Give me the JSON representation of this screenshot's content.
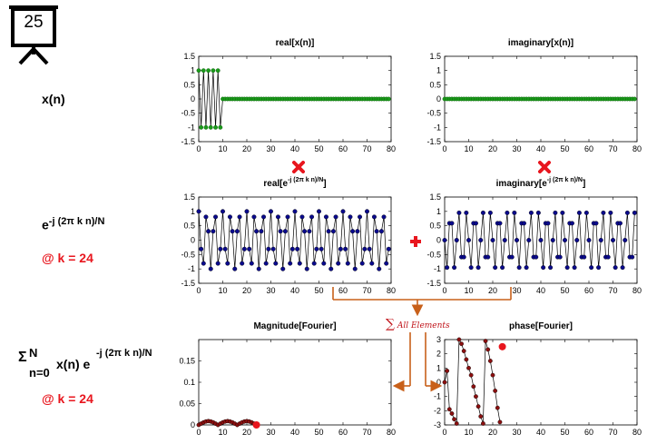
{
  "slide_number": "25",
  "left_labels": {
    "xn": "x(n)",
    "kernel_base": "e",
    "kernel_exp": "-j (2π k n)/N",
    "k_note_1": "@ k = 24",
    "sum_sigma": "Σ",
    "sum_upper": "N",
    "sum_lower": "n=0",
    "sum_term": "x(n) e",
    "sum_exp": "-j (2π k n)/N",
    "k_note_2": "@ k = 24"
  },
  "operators": {
    "sum_label": "All Elements",
    "sum_symbol": "∑"
  },
  "colors": {
    "green": "#1a9a1a",
    "blue": "#0a0a8c",
    "darkred": "#8b0f0f",
    "red": "#e8161e",
    "orange": "#c8601a",
    "grid": "#dddddd"
  },
  "chart_data": [
    {
      "id": "real-x",
      "type": "scatter",
      "title": "real[x(n)]",
      "xlim": [
        0,
        80
      ],
      "ylim": [
        -1.5,
        1.5
      ],
      "xticks": [
        "0",
        "10",
        "20",
        "30",
        "40",
        "50",
        "60",
        "70",
        "80"
      ],
      "yticks": [
        "1.5",
        "1",
        "0.5",
        "0",
        "-0.5",
        "-1",
        "-1.5"
      ],
      "series": [
        {
          "color": "green",
          "x": "0..79",
          "y_rule": "pulse: 1 for n=0..9 (step style ±1), 0 elsewhere",
          "values_n0_9": [
            1,
            -1,
            1,
            -1,
            1,
            -1,
            1,
            -1,
            1,
            -1
          ],
          "values_n10_79": 0
        }
      ]
    },
    {
      "id": "imag-x",
      "type": "scatter",
      "title": "imaginary[x(n)]",
      "xlim": [
        0,
        80
      ],
      "ylim": [
        -1.5,
        1.5
      ],
      "xticks": [
        "0",
        "10",
        "20",
        "30",
        "40",
        "50",
        "60",
        "70",
        "80"
      ],
      "yticks": [
        "1.5",
        "1",
        "0.5",
        "0",
        "-0.5",
        "-1",
        "-1.5"
      ],
      "series": [
        {
          "color": "green",
          "values_all": 0
        }
      ]
    },
    {
      "id": "real-kernel",
      "type": "line",
      "title_base": "real[e",
      "title_exp": "-j (2π k n)/N",
      "title_end": "]",
      "xlim": [
        0,
        80
      ],
      "ylim": [
        -1.5,
        1.5
      ],
      "xticks": [
        "0",
        "10",
        "20",
        "30",
        "40",
        "50",
        "60",
        "70",
        "80"
      ],
      "yticks": [
        "1.5",
        "1",
        "0.5",
        "0",
        "-0.5",
        "-1",
        "-1.5"
      ],
      "k": 24,
      "N": 80,
      "series": [
        {
          "color": "blue",
          "function": "cos(2π·24·n/80)",
          "n": "0..79"
        }
      ]
    },
    {
      "id": "imag-kernel",
      "type": "line",
      "title_base": "imaginary[e",
      "title_exp": "-j (2π k n)/N",
      "title_end": "]",
      "xlim": [
        0,
        80
      ],
      "ylim": [
        -1.5,
        1.5
      ],
      "xticks": [
        "0",
        "10",
        "20",
        "30",
        "40",
        "50",
        "60",
        "70",
        "80"
      ],
      "yticks": [
        "1.5",
        "1",
        "0.5",
        "0",
        "-0.5",
        "-1",
        "-1.5"
      ],
      "k": 24,
      "N": 80,
      "series": [
        {
          "color": "blue",
          "function": "-sin(2π·24·n/80)",
          "n": "0..79"
        }
      ]
    },
    {
      "id": "magnitude",
      "type": "line",
      "title": "Magnitude[Fourier]",
      "xlim": [
        0,
        80
      ],
      "ylim": [
        0,
        0.2
      ],
      "xticks": [
        "0",
        "10",
        "20",
        "30",
        "40",
        "50",
        "60",
        "70",
        "80"
      ],
      "yticks": [
        "0.15",
        "0.1",
        "0.05",
        "0"
      ],
      "series": [
        {
          "color": "darkred",
          "x": [
            0,
            1,
            2,
            3,
            4,
            5,
            6,
            7,
            8,
            9,
            10,
            11,
            12,
            13,
            14,
            15,
            16,
            17,
            18,
            19,
            20,
            21,
            22,
            23,
            24
          ],
          "y": [
            0,
            0.003,
            0.006,
            0.008,
            0.009,
            0.008,
            0.006,
            0.003,
            0,
            0.003,
            0.006,
            0.008,
            0.009,
            0.008,
            0.006,
            0.003,
            0,
            0.003,
            0.006,
            0.008,
            0.009,
            0.008,
            0.006,
            0.003,
            0
          ]
        }
      ],
      "highlight": {
        "x": 24,
        "y": 0,
        "color": "red"
      }
    },
    {
      "id": "phase",
      "type": "line",
      "title": "phase[Fourier]",
      "xlim": [
        0,
        80
      ],
      "ylim": [
        -3,
        3
      ],
      "xticks": [
        "0",
        "10",
        "20",
        "30",
        "40",
        "50",
        "60",
        "70",
        "80"
      ],
      "yticks": [
        "3",
        "2",
        "1",
        "0",
        "-1",
        "-2",
        "-3"
      ],
      "series": [
        {
          "color": "darkred",
          "x": [
            0,
            1,
            2,
            3,
            4,
            5,
            6,
            7,
            8,
            9,
            10,
            11,
            12,
            13,
            14,
            15,
            16,
            17,
            18,
            19,
            20,
            21,
            22,
            23
          ],
          "y": [
            0,
            0.8,
            -1.9,
            -2.2,
            -2.6,
            -2.9,
            3.0,
            2.7,
            2.2,
            1.6,
            1.0,
            0.5,
            -0.3,
            -1.0,
            -1.7,
            -2.4,
            -2.9,
            2.9,
            2.3,
            1.5,
            0.5,
            -0.6,
            -1.8,
            -2.8
          ]
        }
      ],
      "highlight": {
        "x": 24,
        "y": 2.5,
        "color": "red"
      }
    }
  ]
}
